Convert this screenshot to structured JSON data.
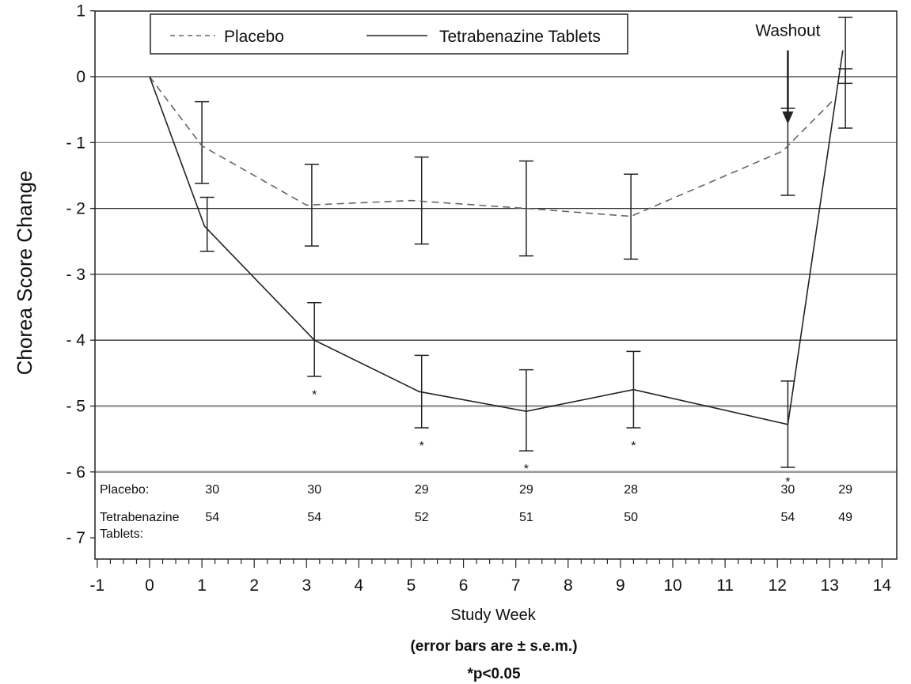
{
  "chart_data": {
    "type": "line",
    "xlabel": "Study Week",
    "ylabel": "Chorea Score Change",
    "xlim": [
      -1,
      14
    ],
    "ylim": [
      -7,
      1
    ],
    "x_ticks": [
      -1,
      0,
      1,
      2,
      3,
      4,
      5,
      6,
      7,
      8,
      9,
      10,
      11,
      12,
      13,
      14
    ],
    "y_ticks": [
      1,
      0,
      -1,
      -2,
      -3,
      -4,
      -5,
      -6,
      -7
    ],
    "y_tick_labels": [
      "1",
      "0",
      "- 1",
      "- 2",
      "- 3",
      "- 4",
      "- 5",
      "- 6",
      "- 7"
    ],
    "grid": "horizontal",
    "legend_position": "top",
    "series": [
      {
        "name": "Placebo",
        "style": "dashed",
        "color": "#666666",
        "x": [
          0,
          1,
          3,
          5,
          7.2,
          9.2,
          12.1,
          13.1
        ],
        "y": [
          0,
          -1.05,
          -1.95,
          -1.88,
          -2.0,
          -2.12,
          -1.13,
          -0.33
        ],
        "error_bars": [
          {
            "x": 1,
            "upper": -0.38,
            "lower": -1.62
          },
          {
            "x": 3.1,
            "upper": -1.33,
            "lower": -2.57
          },
          {
            "x": 5.2,
            "upper": -1.22,
            "lower": -2.54
          },
          {
            "x": 7.2,
            "upper": -1.28,
            "lower": -2.72
          },
          {
            "x": 9.2,
            "upper": -1.48,
            "lower": -2.77
          },
          {
            "x": 12.2,
            "upper": -0.48,
            "lower": -1.8
          },
          {
            "x": 13.3,
            "upper": 0.12,
            "lower": -0.78
          }
        ]
      },
      {
        "name": "Tetrabenazine Tablets",
        "style": "solid",
        "color": "#222222",
        "x": [
          0,
          1.05,
          3.15,
          5.15,
          7.2,
          9.25,
          12.2,
          13.25
        ],
        "y": [
          0,
          -2.27,
          -4.0,
          -4.78,
          -5.08,
          -4.75,
          -5.28,
          0.4
        ],
        "error_bars": [
          {
            "x": 1.1,
            "upper": -1.83,
            "lower": -2.65
          },
          {
            "x": 3.15,
            "upper": -3.43,
            "lower": -4.55
          },
          {
            "x": 5.2,
            "upper": -4.23,
            "lower": -5.33
          },
          {
            "x": 7.2,
            "upper": -4.45,
            "lower": -5.68
          },
          {
            "x": 9.25,
            "upper": -4.17,
            "lower": -5.33
          },
          {
            "x": 12.2,
            "upper": -4.62,
            "lower": -5.93
          },
          {
            "x": 13.3,
            "upper": 0.9,
            "lower": -0.1
          }
        ]
      }
    ],
    "significance_markers": [
      {
        "x": 3.15,
        "y": -4.75,
        "label": "*"
      },
      {
        "x": 5.2,
        "y": -5.52,
        "label": "*"
      },
      {
        "x": 7.2,
        "y": -5.87,
        "label": "*"
      },
      {
        "x": 9.25,
        "y": -5.52,
        "label": "*"
      },
      {
        "x": 12.2,
        "y": -6.07,
        "label": "*"
      }
    ],
    "annotation": {
      "text": "Washout",
      "x": 12.2,
      "y": 0.62,
      "arrow_from_y": 0.4,
      "arrow_to_y": -0.72
    },
    "sample_sizes": {
      "placebo_label": "Placebo:",
      "tetrabenazine_label_line1": "Tetrabenazine",
      "tetrabenazine_label_line2": "Tablets:",
      "x": [
        1.2,
        3.15,
        5.2,
        7.2,
        9.2,
        12.2,
        13.3
      ],
      "placebo": [
        "30",
        "30",
        "29",
        "29",
        "28",
        "30",
        "29"
      ],
      "tetrabenazine": [
        "54",
        "54",
        "52",
        "51",
        "50",
        "54",
        "49"
      ]
    },
    "notes": [
      "(error bars are ± s.e.m.)",
      "*p<0.05"
    ]
  }
}
